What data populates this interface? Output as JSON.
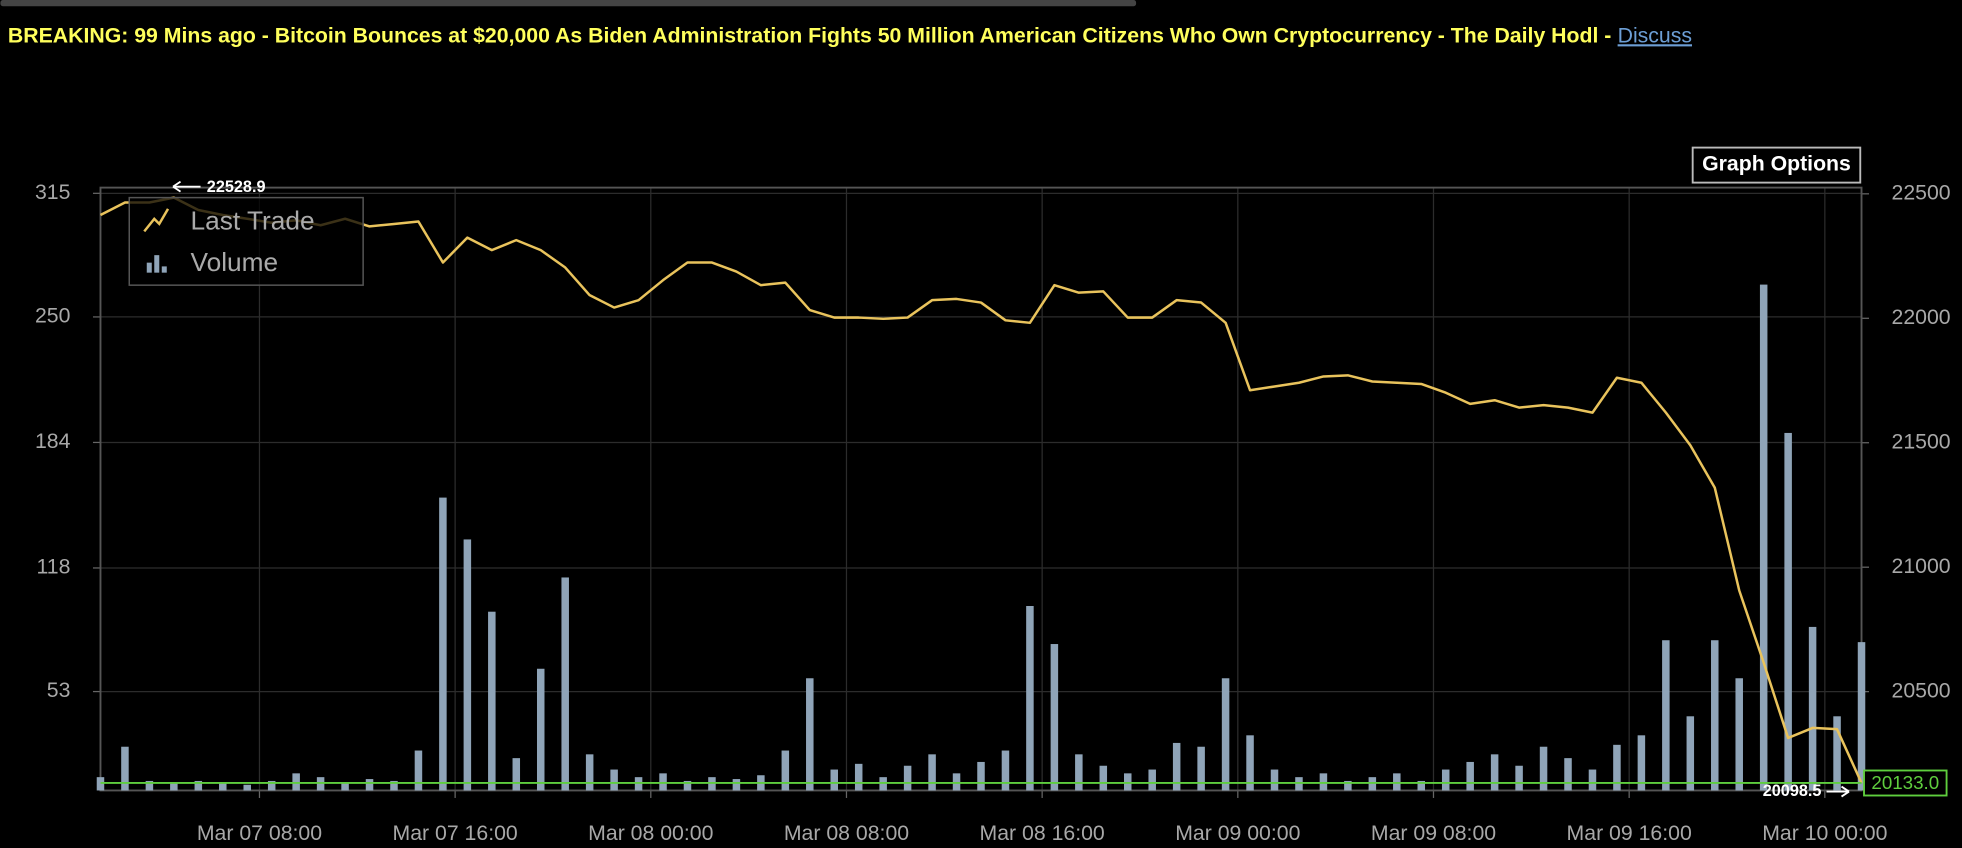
{
  "header": {
    "headline": "BREAKING: 99 Mins ago - Bitcoin Bounces at $20,000 As Biden Administration Fights 50 Million American Citizens Who Own Cryptocurrency - The Daily Hodl -",
    "link": "Discuss"
  },
  "button": "Graph Options",
  "chart_data": {
    "type": "combo",
    "x": [
      "Mar 07 01:30",
      "Mar 07 02:30",
      "Mar 07 03:30",
      "Mar 07 04:30",
      "Mar 07 05:30",
      "Mar 07 06:30",
      "Mar 07 07:30",
      "Mar 07 08:30",
      "Mar 07 09:30",
      "Mar 07 10:30",
      "Mar 07 11:30",
      "Mar 07 12:30",
      "Mar 07 13:30",
      "Mar 07 14:30",
      "Mar 07 15:30",
      "Mar 07 16:30",
      "Mar 07 17:30",
      "Mar 07 18:30",
      "Mar 07 19:30",
      "Mar 07 20:30",
      "Mar 07 21:30",
      "Mar 07 22:30",
      "Mar 07 23:30",
      "Mar 08 00:30",
      "Mar 08 01:30",
      "Mar 08 02:30",
      "Mar 08 03:30",
      "Mar 08 04:30",
      "Mar 08 05:30",
      "Mar 08 06:30",
      "Mar 08 07:30",
      "Mar 08 08:30",
      "Mar 08 09:30",
      "Mar 08 10:30",
      "Mar 08 11:30",
      "Mar 08 12:30",
      "Mar 08 13:30",
      "Mar 08 14:30",
      "Mar 08 15:30",
      "Mar 08 16:30",
      "Mar 08 17:30",
      "Mar 08 18:30",
      "Mar 08 19:30",
      "Mar 08 20:30",
      "Mar 08 21:30",
      "Mar 08 22:30",
      "Mar 08 23:30",
      "Mar 09 00:30",
      "Mar 09 01:30",
      "Mar 09 02:30",
      "Mar 09 03:30",
      "Mar 09 04:30",
      "Mar 09 05:30",
      "Mar 09 06:30",
      "Mar 09 07:30",
      "Mar 09 08:30",
      "Mar 09 09:30",
      "Mar 09 10:30",
      "Mar 09 11:30",
      "Mar 09 12:30",
      "Mar 09 13:30",
      "Mar 09 14:30",
      "Mar 09 15:30",
      "Mar 09 16:30",
      "Mar 09 17:30",
      "Mar 09 18:30",
      "Mar 09 19:30",
      "Mar 09 20:30",
      "Mar 09 21:30",
      "Mar 09 22:30",
      "Mar 09 23:30",
      "Mar 10 00:30",
      "Mar 10 01:30"
    ],
    "series": [
      {
        "name": "Last Trade",
        "type": "line",
        "axis": "y2",
        "color": "#e9c35c",
        "values": [
          22415,
          22465,
          22465,
          22485,
          22435,
          22415,
          22400,
          22384,
          22394,
          22374,
          22400,
          22369,
          22379,
          22389,
          22224,
          22324,
          22274,
          22314,
          22274,
          22204,
          22093,
          22043,
          22073,
          22153,
          22224,
          22224,
          22188,
          22133,
          22143,
          22033,
          22003,
          22003,
          21998,
          22003,
          22073,
          22078,
          22063,
          21992,
          21982,
          22133,
          22103,
          22108,
          22003,
          22003,
          22073,
          22063,
          21982,
          21711,
          21726,
          21741,
          21766,
          21771,
          21746,
          21741,
          21736,
          21701,
          21656,
          21671,
          21641,
          21651,
          21641,
          21621,
          21761,
          21741,
          21621,
          21490,
          21319,
          20907,
          20616,
          20314,
          20354,
          20349,
          20133
        ]
      },
      {
        "name": "Volume",
        "type": "bar",
        "axis": "y",
        "color": "#8fa4b8",
        "values": [
          8,
          24,
          6,
          5,
          6,
          5,
          4,
          6,
          10,
          8,
          5,
          7,
          6,
          22,
          155,
          133,
          95,
          18,
          65,
          113,
          20,
          12,
          8,
          10,
          6,
          8,
          7,
          9,
          22,
          60,
          12,
          15,
          8,
          14,
          20,
          10,
          16,
          22,
          98,
          78,
          20,
          14,
          10,
          12,
          26,
          24,
          60,
          30,
          12,
          8,
          10,
          6,
          8,
          10,
          6,
          12,
          16,
          20,
          14,
          24,
          18,
          12,
          25,
          30,
          80,
          40,
          80,
          60,
          267,
          189,
          87,
          40,
          79
        ]
      }
    ],
    "xlim": [
      "Mar 07 01:30",
      "Mar 10 01:30"
    ],
    "xticks": [
      "Mar 07 08:00",
      "Mar 07 16:00",
      "Mar 08 00:00",
      "Mar 08 08:00",
      "Mar 08 16:00",
      "Mar 09 00:00",
      "Mar 09 08:00",
      "Mar 09 16:00",
      "Mar 10 00:00"
    ],
    "ylim": [
      1,
      318
    ],
    "yticks": [
      315,
      250,
      184,
      118,
      53
    ],
    "y2lim": [
      20103,
      22525
    ],
    "y2ticks": [
      22500,
      22000,
      21500,
      21000,
      20500
    ],
    "grid": true,
    "legend": "top-left",
    "high": 22528.9,
    "low": 20098.5,
    "last": {
      "value": 20133,
      "label": "20133.0"
    },
    "last_color": "#5fce3e"
  }
}
